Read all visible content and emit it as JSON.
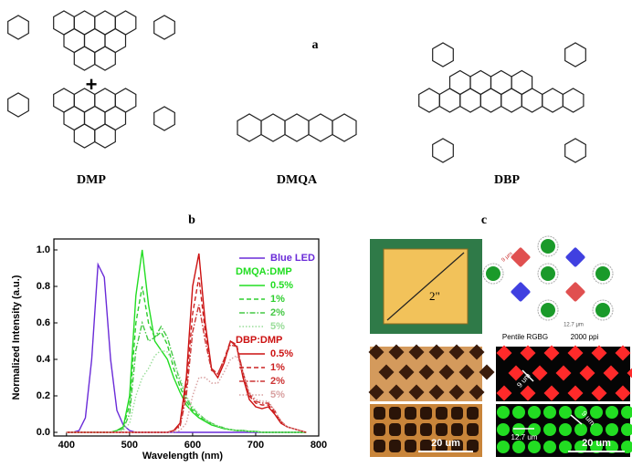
{
  "panel_a": {
    "letter": "a",
    "plus": "+",
    "labels": [
      "DMP",
      "DMQA",
      "DBP"
    ]
  },
  "chart_data": {
    "type": "line",
    "letter": "b",
    "xlabel": "Wavelength (nm)",
    "ylabel": "Normalized Intensity (a.u.)",
    "x": [
      400,
      410,
      420,
      430,
      440,
      450,
      460,
      470,
      480,
      490,
      500,
      510,
      520,
      530,
      540,
      550,
      560,
      570,
      580,
      590,
      600,
      610,
      620,
      630,
      640,
      650,
      660,
      670,
      680,
      690,
      700,
      710,
      720,
      730,
      740,
      750,
      760,
      770,
      780
    ],
    "xlim": [
      380,
      800
    ],
    "xticks": [
      400,
      500,
      600,
      700,
      800
    ],
    "ylim": [
      -0.02,
      1.06
    ],
    "yticks": [
      {
        "value": 0,
        "label": "0.0"
      },
      0.2,
      0.4,
      0.6,
      0.8,
      {
        "value": 1,
        "label": "1.0"
      }
    ],
    "legend_groups": [
      {
        "title": "DMQA:DMP",
        "color": "#22dd22",
        "before": 1
      },
      {
        "title": "DBP:DMP",
        "color": "#cc1111",
        "before": 5
      }
    ],
    "series": [
      {
        "name": "Blue LED",
        "color": "#6a2bd8",
        "dash": "solid",
        "values": [
          0,
          0,
          0.01,
          0.08,
          0.4,
          0.92,
          0.85,
          0.4,
          0.12,
          0.04,
          0.01,
          0,
          0,
          0,
          0,
          0,
          0,
          0,
          0,
          0,
          0,
          0,
          0,
          0,
          0,
          0,
          0,
          0,
          0,
          0,
          0,
          0,
          0,
          0,
          0,
          0,
          0,
          0,
          0
        ]
      },
      {
        "name": "0.5%",
        "color": "#22dd22",
        "dash": "solid",
        "values": [
          0,
          0,
          0,
          0,
          0,
          0,
          0,
          0,
          0.01,
          0.03,
          0.2,
          0.75,
          1.0,
          0.7,
          0.5,
          0.45,
          0.4,
          0.3,
          0.22,
          0.15,
          0.11,
          0.08,
          0.06,
          0.04,
          0.03,
          0.02,
          0.015,
          0.01,
          0.01,
          0.005,
          0.005,
          0,
          0,
          0,
          0,
          0,
          0,
          0,
          0
        ]
      },
      {
        "name": "1%",
        "color": "#2fcf2f",
        "dash": "dash",
        "values": [
          0,
          0,
          0,
          0,
          0,
          0,
          0,
          0,
          0.01,
          0.03,
          0.15,
          0.6,
          0.8,
          0.6,
          0.52,
          0.55,
          0.48,
          0.35,
          0.25,
          0.17,
          0.12,
          0.09,
          0.06,
          0.045,
          0.03,
          0.02,
          0.015,
          0.01,
          0.01,
          0.005,
          0.005,
          0,
          0,
          0,
          0,
          0,
          0,
          0,
          0
        ]
      },
      {
        "name": "2%",
        "color": "#44c844",
        "dash": "dashdot",
        "values": [
          0,
          0,
          0,
          0,
          0,
          0,
          0,
          0,
          0.01,
          0.02,
          0.1,
          0.45,
          0.6,
          0.5,
          0.52,
          0.58,
          0.52,
          0.4,
          0.28,
          0.19,
          0.13,
          0.1,
          0.07,
          0.05,
          0.035,
          0.025,
          0.015,
          0.01,
          0.01,
          0.005,
          0.005,
          0,
          0,
          0,
          0,
          0,
          0,
          0,
          0
        ]
      },
      {
        "name": "5%",
        "color": "#99dd99",
        "dash": "dot",
        "values": [
          0,
          0,
          0,
          0,
          0,
          0,
          0,
          0,
          0,
          0.01,
          0.05,
          0.2,
          0.3,
          0.35,
          0.42,
          0.45,
          0.44,
          0.38,
          0.3,
          0.2,
          0.14,
          0.1,
          0.07,
          0.05,
          0.035,
          0.025,
          0.015,
          0.01,
          0.01,
          0.005,
          0.005,
          0,
          0,
          0,
          0,
          0,
          0,
          0,
          0
        ]
      },
      {
        "name": "0.5%",
        "color": "#cc1111",
        "dash": "solid",
        "values": [
          0,
          0,
          0,
          0,
          0,
          0,
          0,
          0,
          0,
          0,
          0,
          0,
          0,
          0,
          0,
          0,
          0,
          0.01,
          0.05,
          0.3,
          0.8,
          0.98,
          0.6,
          0.35,
          0.3,
          0.38,
          0.5,
          0.47,
          0.3,
          0.18,
          0.14,
          0.13,
          0.14,
          0.1,
          0.05,
          0.03,
          0.02,
          0.01,
          0
        ]
      },
      {
        "name": "1%",
        "color": "#cc2222",
        "dash": "dash",
        "values": [
          0,
          0,
          0,
          0,
          0,
          0,
          0,
          0,
          0,
          0,
          0,
          0,
          0,
          0,
          0,
          0,
          0,
          0.01,
          0.04,
          0.25,
          0.65,
          0.85,
          0.55,
          0.35,
          0.32,
          0.4,
          0.5,
          0.48,
          0.32,
          0.2,
          0.16,
          0.15,
          0.15,
          0.11,
          0.06,
          0.03,
          0.02,
          0.01,
          0
        ]
      },
      {
        "name": "2%",
        "color": "#cc3333",
        "dash": "dashdot",
        "values": [
          0,
          0,
          0,
          0,
          0,
          0,
          0,
          0,
          0,
          0,
          0,
          0,
          0,
          0,
          0,
          0,
          0,
          0.01,
          0.03,
          0.2,
          0.55,
          0.7,
          0.5,
          0.34,
          0.32,
          0.4,
          0.48,
          0.47,
          0.33,
          0.21,
          0.17,
          0.16,
          0.16,
          0.12,
          0.06,
          0.03,
          0.02,
          0.01,
          0
        ]
      },
      {
        "name": "5%",
        "color": "#d8a0a0",
        "dash": "dot",
        "values": [
          0,
          0,
          0,
          0,
          0,
          0,
          0,
          0,
          0,
          0,
          0,
          0,
          0,
          0,
          0,
          0,
          0,
          0,
          0.01,
          0.05,
          0.2,
          0.3,
          0.3,
          0.27,
          0.27,
          0.33,
          0.4,
          0.42,
          0.33,
          0.22,
          0.18,
          0.17,
          0.17,
          0.12,
          0.06,
          0.03,
          0.02,
          0.01,
          0
        ]
      }
    ]
  },
  "panel_c": {
    "letter": "c",
    "diagonal": "2\"",
    "layout": "Pentile RGBG",
    "ppi": "2000 ppi",
    "pitch_small": "12.7 μm",
    "gap_small": "9 μm",
    "gap": "9 um",
    "gap2": "9 um",
    "pitch": "12.7 um",
    "scale_left": "20 um",
    "scale_right": "20 um"
  }
}
